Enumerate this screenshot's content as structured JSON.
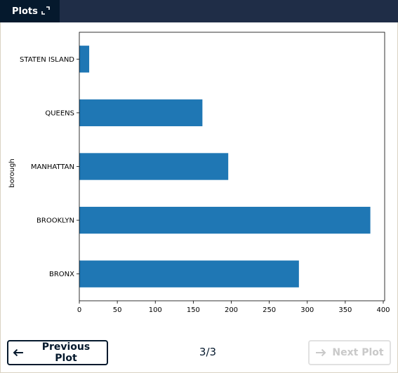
{
  "header": {
    "tab_label": "Plots",
    "expand_icon": "expand-icon"
  },
  "chart_data": {
    "type": "bar",
    "orientation": "horizontal",
    "categories": [
      "BRONX",
      "BROOKLYN",
      "MANHATTAN",
      "QUEENS",
      "STATEN ISLAND"
    ],
    "values": [
      289,
      383,
      196,
      162,
      13
    ],
    "ylabel": "borough",
    "xlabel": "",
    "xlim": [
      0,
      405
    ],
    "xticks": [
      0,
      50,
      100,
      150,
      200,
      250,
      300,
      350,
      400
    ],
    "bar_color": "#1f77b4",
    "grid": false,
    "legend": "none"
  },
  "footer": {
    "prev_label": "Previous Plot",
    "next_label": "Next Plot",
    "page_indicator": "3/3"
  }
}
